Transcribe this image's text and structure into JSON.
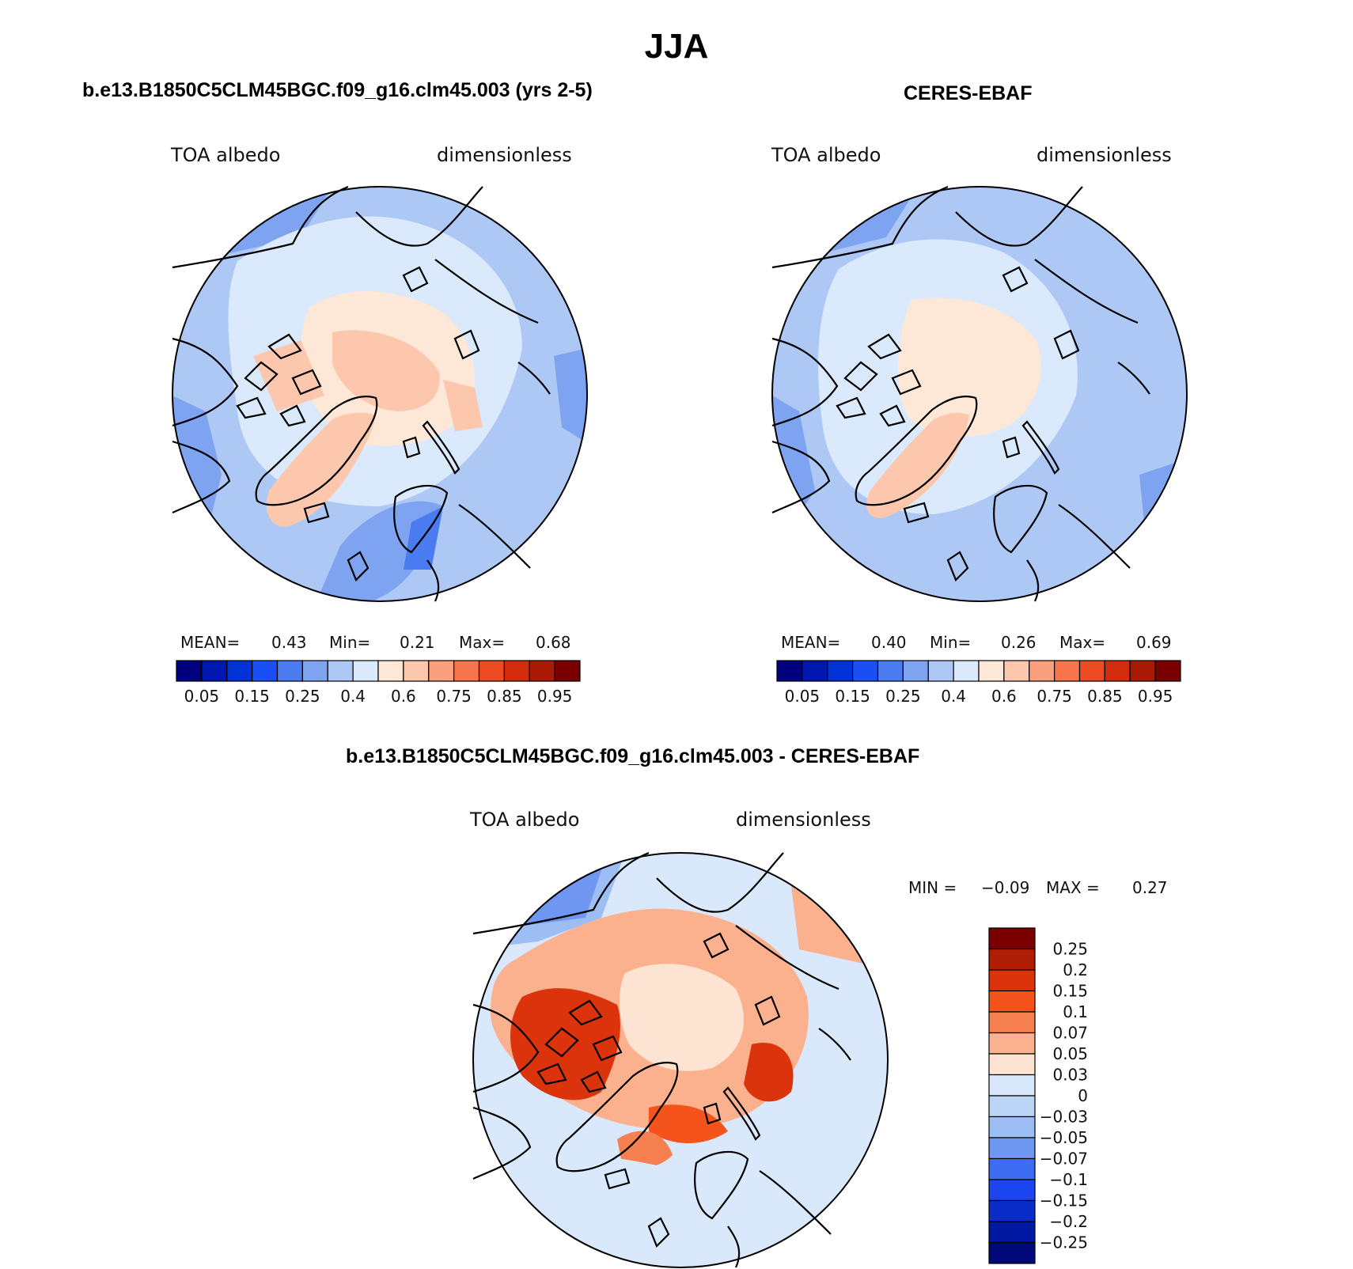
{
  "page": {
    "season_title": "JJA"
  },
  "panels": [
    {
      "id": "model",
      "title": "b.e13.B1850C5CLM45BGC.f09_g16.clm45.003 (yrs 2-5)",
      "left_label": "TOA albedo",
      "right_label": "dimensionless",
      "stats": {
        "mean_label": "MEAN=",
        "mean": "0.43",
        "min_label": "Min=",
        "min": "0.21",
        "max_label": "Max=",
        "max": "0.68"
      }
    },
    {
      "id": "obs",
      "title": "CERES-EBAF",
      "left_label": "TOA albedo",
      "right_label": "dimensionless",
      "stats": {
        "mean_label": "MEAN=",
        "mean": "0.40",
        "min_label": "Min=",
        "min": "0.26",
        "max_label": "Max=",
        "max": "0.69"
      }
    },
    {
      "id": "diff",
      "title": "b.e13.B1850C5CLM45BGC.f09_g16.clm45.003 - CERES-EBAF",
      "left_label": "TOA albedo",
      "right_label": "dimensionless",
      "stats": {
        "min_label": "MIN =",
        "min": "−0.09",
        "max_label": "MAX =",
        "max": "0.27"
      }
    }
  ],
  "colorbars": {
    "albedo": {
      "colors": [
        "#00007f",
        "#0018b0",
        "#0033d6",
        "#1a4ff5",
        "#4b7bf0",
        "#7ea3f0",
        "#adc8f5",
        "#dae9fb",
        "#fde7d7",
        "#fcc7ad",
        "#fba07c",
        "#f7744d",
        "#ec4a22",
        "#d22c0c",
        "#a91a05",
        "#7a0000"
      ],
      "labels": [
        "0.05",
        "0.15",
        "0.25",
        "0.4",
        "0.6",
        "0.75",
        "0.85",
        "0.95"
      ]
    },
    "diff": {
      "colors": [
        "#7a0000",
        "#b01d05",
        "#db330c",
        "#f4541c",
        "#f78050",
        "#fbb08e",
        "#fde4d2",
        "#d9e9fb",
        "#bcd5f7",
        "#9dbdf5",
        "#6f96f0",
        "#3e6cf3",
        "#1a45ef",
        "#0a2cc9",
        "#0019a3",
        "#00097a"
      ],
      "labels": [
        "0.25",
        "0.2",
        "0.15",
        "0.1",
        "0.07",
        "0.05",
        "0.03",
        "0",
        "−0.03",
        "−0.05",
        "−0.07",
        "−0.1",
        "−0.15",
        "−0.2",
        "−0.25"
      ]
    }
  },
  "chart_data": [
    {
      "type": "heatmap",
      "projection": "north-polar-stereographic",
      "title": "b.e13.B1850C5CLM45BGC.f09_g16.clm45.003 (yrs 2-5)",
      "variable": "TOA albedo",
      "units": "dimensionless",
      "mean": 0.43,
      "min": 0.21,
      "max": 0.68,
      "levels": [
        0.05,
        0.1,
        0.15,
        0.2,
        0.25,
        0.3,
        0.4,
        0.5,
        0.6,
        0.65,
        0.75,
        0.8,
        0.85,
        0.9,
        0.95
      ]
    },
    {
      "type": "heatmap",
      "projection": "north-polar-stereographic",
      "title": "CERES-EBAF",
      "variable": "TOA albedo",
      "units": "dimensionless",
      "mean": 0.4,
      "min": 0.26,
      "max": 0.69,
      "levels": [
        0.05,
        0.1,
        0.15,
        0.2,
        0.25,
        0.3,
        0.4,
        0.5,
        0.6,
        0.65,
        0.75,
        0.8,
        0.85,
        0.9,
        0.95
      ]
    },
    {
      "type": "heatmap",
      "projection": "north-polar-stereographic",
      "title": "b.e13.B1850C5CLM45BGC.f09_g16.clm45.003 - CERES-EBAF",
      "variable": "TOA albedo",
      "units": "dimensionless",
      "min": -0.09,
      "max": 0.27,
      "levels": [
        0.25,
        0.2,
        0.15,
        0.1,
        0.07,
        0.05,
        0.03,
        0,
        -0.03,
        -0.05,
        -0.07,
        -0.1,
        -0.15,
        -0.2,
        -0.25
      ]
    }
  ]
}
